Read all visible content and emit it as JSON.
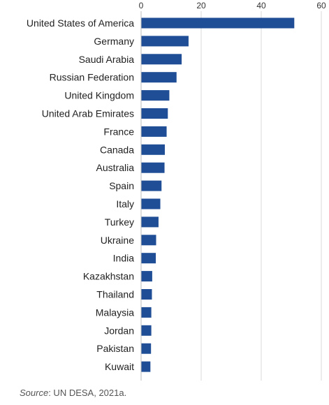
{
  "chart_data": {
    "type": "bar",
    "orientation": "horizontal",
    "categories": [
      "United States of America",
      "Germany",
      "Saudi Arabia",
      "Russian Federation",
      "United Kingdom",
      "United Arab Emirates",
      "France",
      "Canada",
      "Australia",
      "Spain",
      "Italy",
      "Turkey",
      "Ukraine",
      "India",
      "Kazakhstan",
      "Thailand",
      "Malaysia",
      "Jordan",
      "Pakistan",
      "Kuwait"
    ],
    "values": [
      51,
      15.8,
      13.5,
      11.8,
      9.4,
      8.9,
      8.5,
      7.9,
      7.8,
      6.8,
      6.4,
      5.8,
      5.0,
      4.9,
      3.7,
      3.6,
      3.4,
      3.4,
      3.3,
      3.1
    ],
    "xlim": [
      0,
      60
    ],
    "x_ticks": [
      "0",
      "20",
      "40",
      "60"
    ],
    "tick_position": "top",
    "grid": true,
    "bar_color": "#1f4e96",
    "grid_color": "#d9d9d9"
  },
  "source": {
    "label": "Source",
    "text": ": UN DESA, 2021a."
  }
}
